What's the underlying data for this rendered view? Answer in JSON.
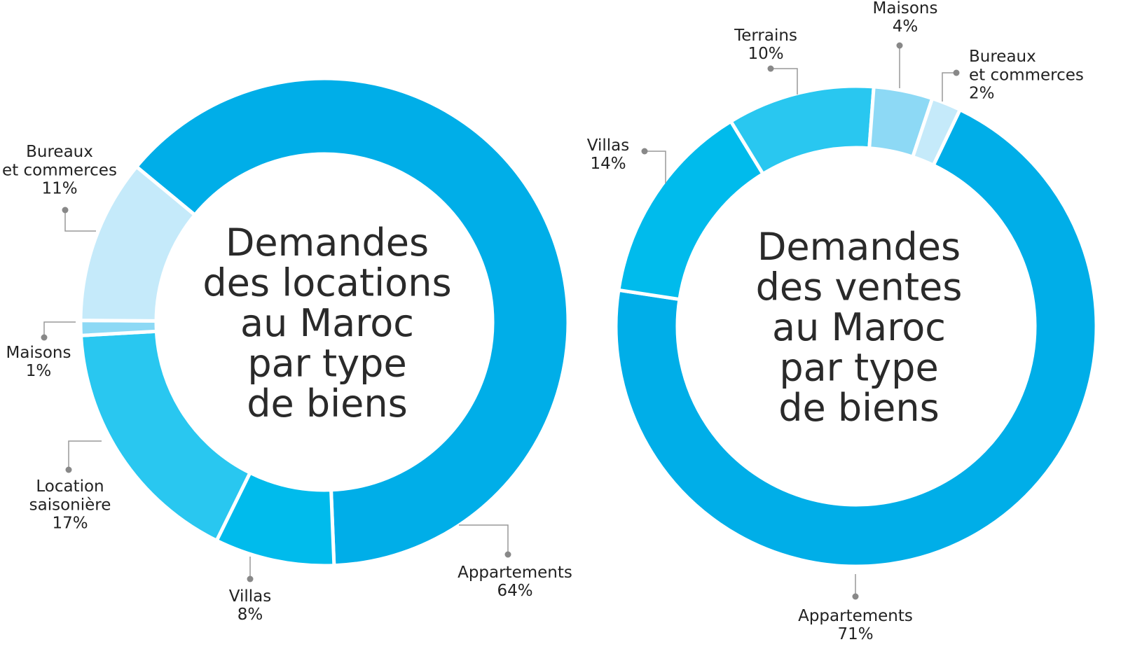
{
  "chart_data": [
    {
      "type": "pie",
      "title": "Demandes\ndes locations\nau Maroc\npar type\nde biens",
      "categories": [
        "Appartements",
        "Villas",
        "Location\nsaisonière",
        "Maisons",
        "Bureaux\net commerces"
      ],
      "values": [
        64,
        8,
        17,
        1,
        11
      ],
      "value_labels": [
        "64%",
        "8%",
        "17%",
        "1%",
        "11%"
      ],
      "colors": [
        "#00aee8",
        "#00bbec",
        "#29c7f0",
        "#8dd9f5",
        "#c5eafa"
      ]
    },
    {
      "type": "pie",
      "title": "Demandes\ndes ventes\nau Maroc\npar type\nde biens",
      "categories": [
        "Appartements",
        "Villas",
        "Terrains",
        "Maisons",
        "Bureaux\net commerces"
      ],
      "values": [
        71,
        14,
        10,
        4,
        2
      ],
      "value_labels": [
        "71%",
        "14%",
        "10%",
        "4%",
        "2%"
      ],
      "colors": [
        "#00aee8",
        "#00bbec",
        "#29c7f0",
        "#8dd9f5",
        "#c5eafa"
      ]
    }
  ]
}
